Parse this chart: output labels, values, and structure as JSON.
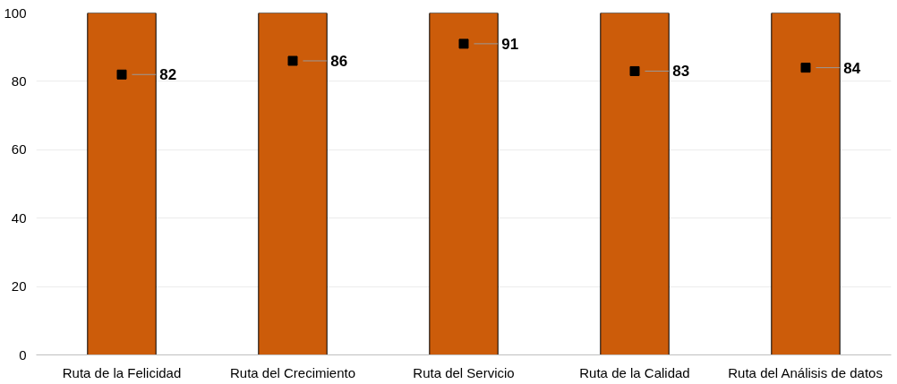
{
  "chart_data": {
    "type": "bar",
    "categories": [
      "Ruta de la Felicidad",
      "Ruta del Crecimiento",
      "Ruta del Servicio",
      "Ruta de la Calidad",
      "Ruta del Análisis de datos"
    ],
    "series": [
      {
        "color": "#cc5c0a",
        "values": [
          100,
          100,
          100,
          100,
          100
        ]
      },
      {
        "type": "scatter",
        "color": "#000000",
        "values": [
          82,
          86,
          91,
          83,
          84
        ],
        "value_labels": [
          "82",
          "86",
          "91",
          "83",
          "84"
        ]
      }
    ],
    "ylim": [
      0,
      100
    ],
    "yticks": [
      0,
      20,
      40,
      60,
      80,
      100
    ],
    "grid": "y",
    "marker": "square"
  }
}
